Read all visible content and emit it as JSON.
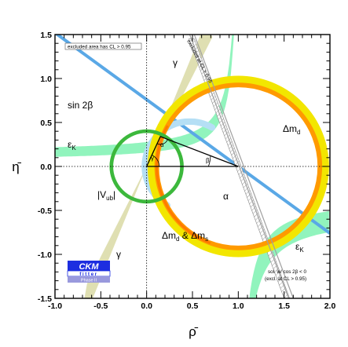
{
  "chart_data": {
    "type": "scatter",
    "xlabel": "ρ̄",
    "ylabel": "η̄",
    "xlim": [
      -1.0,
      2.0
    ],
    "ylim": [
      -1.5,
      1.5
    ],
    "grid": false,
    "x_ticks": [
      {
        "value": -1.0,
        "label": "-1.0"
      },
      {
        "value": -0.5,
        "label": "-0.5"
      },
      {
        "value": 0.0,
        "label": "0.0"
      },
      {
        "value": 0.5,
        "label": "0.5"
      },
      {
        "value": 1.0,
        "label": "1.0"
      },
      {
        "value": 1.5,
        "label": "1.5"
      },
      {
        "value": 2.0,
        "label": "2.0"
      }
    ],
    "y_ticks": [
      {
        "value": 1.5,
        "label": "1.5"
      },
      {
        "value": 1.0,
        "label": "1.0"
      },
      {
        "value": 0.5,
        "label": "0.5"
      },
      {
        "value": 0.0,
        "label": "0.0"
      },
      {
        "value": -0.5,
        "label": "-0.5"
      },
      {
        "value": -1.0,
        "label": "-1.0"
      },
      {
        "value": -1.5,
        "label": "-1.5"
      }
    ],
    "apex": {
      "rho": 0.15,
      "eta": 0.34
    },
    "angle_labels": {
      "alpha": "α",
      "beta": "β",
      "gamma": "γ"
    },
    "constraints": [
      {
        "id": "dmd",
        "label": "Δm",
        "subscript": "d",
        "center": [
          1.0,
          0.0
        ],
        "radius": 0.94,
        "width": 0.05,
        "color": "#f2e600"
      },
      {
        "id": "dmd-dms",
        "label": "Δm",
        "subscript": "d",
        "label2": "Δm",
        "subscript2": "s",
        "center": [
          1.0,
          0.0
        ],
        "radius": 0.89,
        "width": 0.025,
        "color": "#ff9a00"
      },
      {
        "id": "vub",
        "label": "|V",
        "subscript": "ub",
        "label_suffix": "|",
        "center": [
          0.0,
          0.0
        ],
        "radius": 0.385,
        "width": 0.02,
        "color": "#3cb83c"
      },
      {
        "id": "alpha",
        "label": "α",
        "center": [
          0.47,
          0.0
        ],
        "radius": 0.49,
        "width": 0.035,
        "color": "#b5dff5"
      },
      {
        "id": "epsk",
        "label": "ε",
        "subscript": "K",
        "color": "#7ef2b2"
      },
      {
        "id": "sin2b",
        "label": "sin 2β",
        "slope": -0.76,
        "color": "#5aa8e6"
      },
      {
        "id": "gamma",
        "label": "γ",
        "slope": 2.27,
        "color": "#dcdcaa"
      }
    ],
    "annotations": [
      "excluded area has CL > 0.95",
      "excluded at CL > 0.95",
      "sol. w/ cos 2β < 0",
      "(excl. at CL > 0.95)"
    ],
    "logo": {
      "line1": "CKM",
      "line2": "fitter",
      "line3": "Phase II"
    }
  }
}
